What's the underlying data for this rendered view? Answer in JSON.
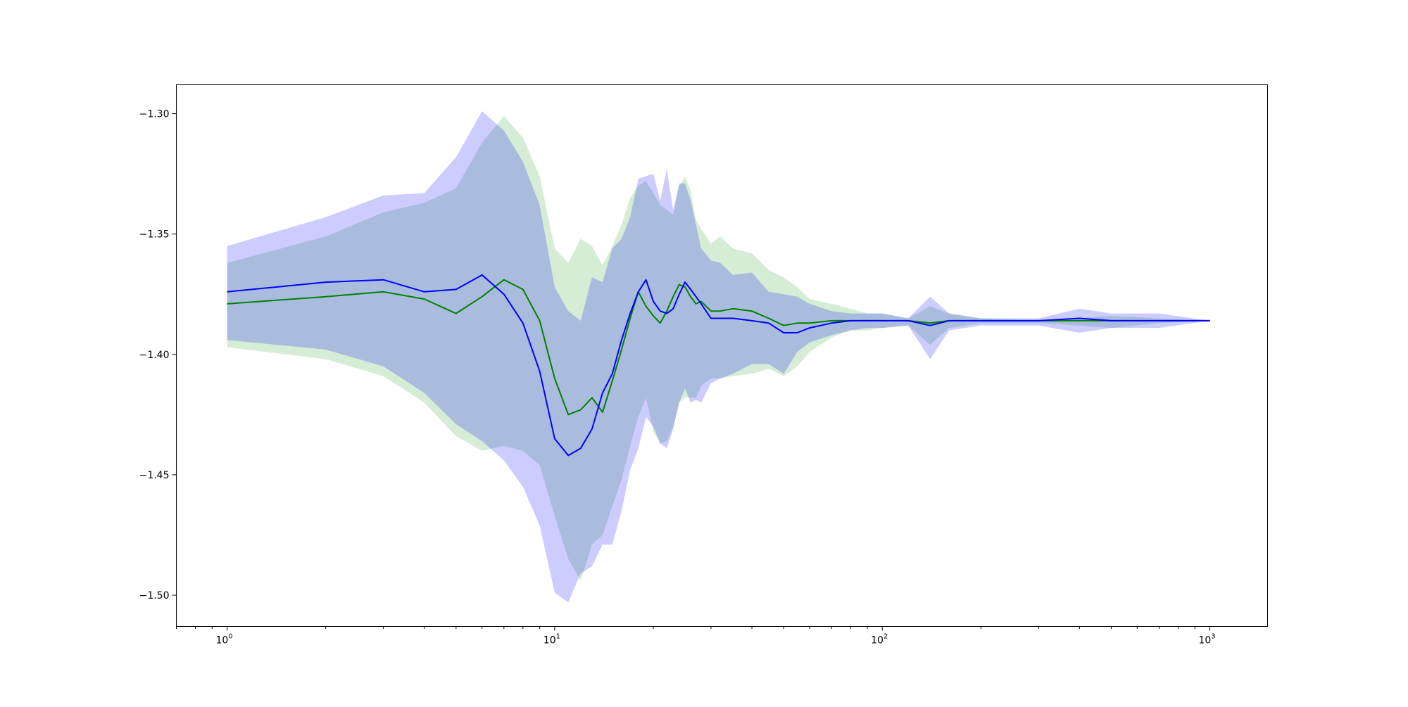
{
  "chart_data": {
    "type": "line",
    "title": "",
    "xlabel": "",
    "ylabel": "",
    "xscale": "log",
    "xlim": [
      0.7,
      1500
    ],
    "ylim": [
      -1.513,
      -1.288
    ],
    "grid": false,
    "legend": "none",
    "x_ticks": [
      {
        "value": 1,
        "base": "10",
        "exp": "0"
      },
      {
        "value": 10,
        "base": "10",
        "exp": "1"
      },
      {
        "value": 100,
        "base": "10",
        "exp": "2"
      },
      {
        "value": 1000,
        "base": "10",
        "exp": "3"
      }
    ],
    "y_ticks": [
      {
        "value": -1.3,
        "label": "−1.30"
      },
      {
        "value": -1.35,
        "label": "−1.35"
      },
      {
        "value": -1.4,
        "label": "−1.40"
      },
      {
        "value": -1.45,
        "label": "−1.45"
      },
      {
        "value": -1.5,
        "label": "−1.50"
      }
    ],
    "series": [
      {
        "color": "#008000",
        "band_color": "#2ca02c",
        "x": [
          1,
          2,
          3,
          4,
          5,
          6,
          7,
          8,
          9,
          10,
          11,
          12,
          13,
          14,
          15,
          16,
          17,
          18,
          19,
          20,
          21,
          22,
          23,
          24,
          25,
          26,
          27,
          28,
          30,
          32,
          35,
          40,
          45,
          50,
          55,
          60,
          70,
          80,
          90,
          100,
          120,
          140,
          160,
          200,
          300,
          400,
          500,
          700,
          1000
        ],
        "y": [
          -1.379,
          -1.376,
          -1.374,
          -1.377,
          -1.383,
          -1.376,
          -1.369,
          -1.373,
          -1.386,
          -1.41,
          -1.425,
          -1.423,
          -1.418,
          -1.424,
          -1.411,
          -1.398,
          -1.385,
          -1.374,
          -1.38,
          -1.384,
          -1.387,
          -1.382,
          -1.376,
          -1.371,
          -1.372,
          -1.376,
          -1.379,
          -1.378,
          -1.382,
          -1.382,
          -1.381,
          -1.382,
          -1.385,
          -1.388,
          -1.387,
          -1.387,
          -1.386,
          -1.386,
          -1.386,
          -1.386,
          -1.386,
          -1.387,
          -1.386,
          -1.386,
          -1.386,
          -1.386,
          -1.386,
          -1.386,
          -1.386
        ],
        "upper": [
          -1.362,
          -1.351,
          -1.341,
          -1.337,
          -1.331,
          -1.312,
          -1.301,
          -1.31,
          -1.326,
          -1.356,
          -1.362,
          -1.352,
          -1.355,
          -1.363,
          -1.355,
          -1.346,
          -1.335,
          -1.33,
          -1.328,
          -1.333,
          -1.338,
          -1.34,
          -1.342,
          -1.33,
          -1.326,
          -1.332,
          -1.344,
          -1.348,
          -1.354,
          -1.351,
          -1.356,
          -1.358,
          -1.365,
          -1.368,
          -1.372,
          -1.377,
          -1.379,
          -1.381,
          -1.383,
          -1.383,
          -1.385,
          -1.38,
          -1.383,
          -1.385,
          -1.386,
          -1.385,
          -1.384,
          -1.385,
          -1.386
        ],
        "lower": [
          -1.397,
          -1.402,
          -1.409,
          -1.42,
          -1.434,
          -1.44,
          -1.438,
          -1.44,
          -1.446,
          -1.467,
          -1.485,
          -1.494,
          -1.479,
          -1.475,
          -1.463,
          -1.452,
          -1.438,
          -1.426,
          -1.418,
          -1.432,
          -1.437,
          -1.436,
          -1.43,
          -1.42,
          -1.418,
          -1.418,
          -1.418,
          -1.413,
          -1.41,
          -1.41,
          -1.409,
          -1.408,
          -1.406,
          -1.409,
          -1.405,
          -1.399,
          -1.393,
          -1.39,
          -1.39,
          -1.389,
          -1.388,
          -1.396,
          -1.389,
          -1.387,
          -1.387,
          -1.388,
          -1.389,
          -1.387,
          -1.386
        ]
      },
      {
        "color": "#0000ff",
        "band_color": "#0000ff",
        "x": [
          1,
          2,
          3,
          4,
          5,
          6,
          7,
          8,
          9,
          10,
          11,
          12,
          13,
          14,
          15,
          16,
          17,
          18,
          19,
          20,
          21,
          22,
          23,
          24,
          25,
          26,
          27,
          28,
          30,
          32,
          35,
          40,
          45,
          50,
          55,
          60,
          70,
          80,
          90,
          100,
          120,
          140,
          160,
          200,
          300,
          400,
          500,
          700,
          1000
        ],
        "y": [
          -1.374,
          -1.37,
          -1.369,
          -1.374,
          -1.373,
          -1.367,
          -1.375,
          -1.387,
          -1.407,
          -1.435,
          -1.442,
          -1.439,
          -1.431,
          -1.416,
          -1.408,
          -1.394,
          -1.383,
          -1.374,
          -1.369,
          -1.378,
          -1.382,
          -1.383,
          -1.381,
          -1.375,
          -1.37,
          -1.373,
          -1.376,
          -1.379,
          -1.385,
          -1.385,
          -1.385,
          -1.386,
          -1.387,
          -1.391,
          -1.391,
          -1.389,
          -1.387,
          -1.386,
          -1.386,
          -1.386,
          -1.386,
          -1.388,
          -1.386,
          -1.386,
          -1.386,
          -1.385,
          -1.386,
          -1.386,
          -1.386
        ],
        "upper": [
          -1.355,
          -1.343,
          -1.334,
          -1.333,
          -1.318,
          -1.299,
          -1.307,
          -1.32,
          -1.338,
          -1.372,
          -1.382,
          -1.386,
          -1.368,
          -1.37,
          -1.356,
          -1.352,
          -1.343,
          -1.327,
          -1.326,
          -1.325,
          -1.336,
          -1.323,
          -1.34,
          -1.329,
          -1.329,
          -1.336,
          -1.346,
          -1.356,
          -1.361,
          -1.362,
          -1.367,
          -1.366,
          -1.374,
          -1.375,
          -1.376,
          -1.379,
          -1.382,
          -1.383,
          -1.383,
          -1.383,
          -1.385,
          -1.376,
          -1.383,
          -1.385,
          -1.385,
          -1.381,
          -1.383,
          -1.383,
          -1.386
        ],
        "lower": [
          -1.394,
          -1.398,
          -1.405,
          -1.416,
          -1.429,
          -1.436,
          -1.444,
          -1.455,
          -1.471,
          -1.499,
          -1.503,
          -1.491,
          -1.488,
          -1.479,
          -1.479,
          -1.465,
          -1.448,
          -1.439,
          -1.426,
          -1.43,
          -1.437,
          -1.439,
          -1.431,
          -1.42,
          -1.414,
          -1.42,
          -1.419,
          -1.42,
          -1.412,
          -1.41,
          -1.408,
          -1.404,
          -1.404,
          -1.408,
          -1.399,
          -1.395,
          -1.392,
          -1.39,
          -1.389,
          -1.389,
          -1.388,
          -1.402,
          -1.39,
          -1.388,
          -1.388,
          -1.391,
          -1.389,
          -1.389,
          -1.386
        ]
      }
    ]
  }
}
